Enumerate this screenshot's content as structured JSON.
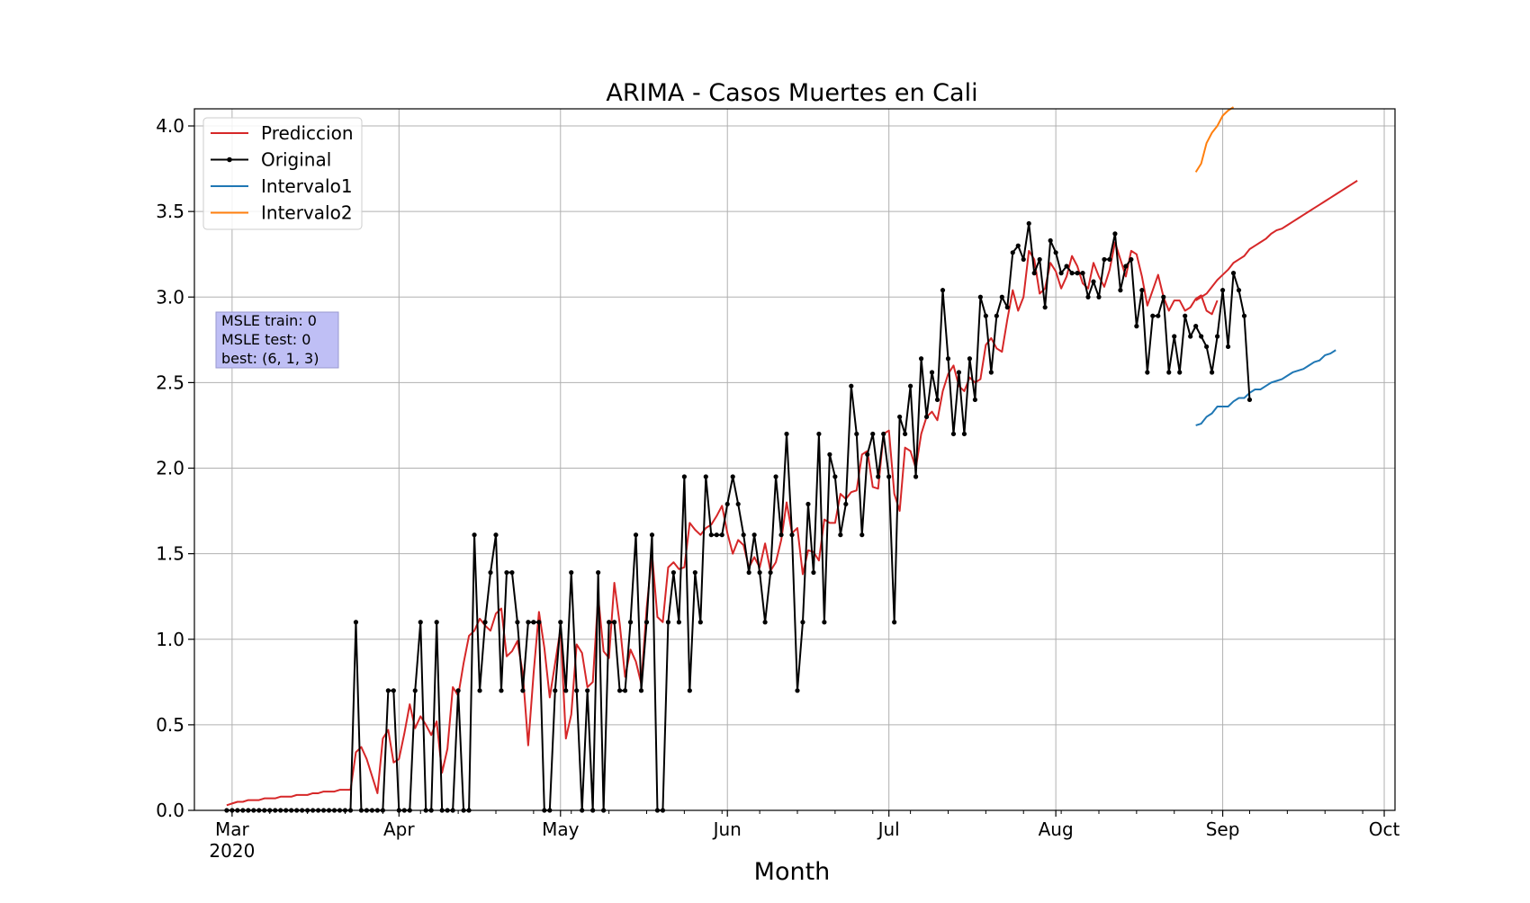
{
  "chart_data": {
    "type": "line",
    "title": "ARIMA - Casos Muertes en Cali",
    "xlabel": "Month",
    "ylabel": "",
    "x_scale": "date",
    "xlim": [
      "2020-02-23",
      "2020-10-03"
    ],
    "ylim": [
      0.0,
      4.1
    ],
    "grid": true,
    "x_ticks": [
      {
        "date": "2020-03-01",
        "label": "Mar",
        "sublabel": "2020"
      },
      {
        "date": "2020-04-01",
        "label": "Apr"
      },
      {
        "date": "2020-05-01",
        "label": "May"
      },
      {
        "date": "2020-06-01",
        "label": "Jun"
      },
      {
        "date": "2020-07-01",
        "label": "Jul"
      },
      {
        "date": "2020-08-01",
        "label": "Aug"
      },
      {
        "date": "2020-09-01",
        "label": "Sep"
      },
      {
        "date": "2020-10-01",
        "label": "Oct"
      }
    ],
    "y_ticks": [
      {
        "value": 0.0,
        "label": "0.0"
      },
      {
        "value": 0.5,
        "label": "0.5"
      },
      {
        "value": 1.0,
        "label": "1.0"
      },
      {
        "value": 1.5,
        "label": "1.5"
      },
      {
        "value": 2.0,
        "label": "2.0"
      },
      {
        "value": 2.5,
        "label": "2.5"
      },
      {
        "value": 3.0,
        "label": "3.0"
      },
      {
        "value": 3.5,
        "label": "3.5"
      },
      {
        "value": 4.0,
        "label": "4.0"
      }
    ],
    "legend": {
      "placement": "top-left",
      "entries": [
        {
          "name": "Prediccion",
          "color": "#d62728",
          "marker": false
        },
        {
          "name": "Original",
          "color": "#000000",
          "marker": true
        },
        {
          "name": "Intervalo1",
          "color": "#1f77b4",
          "marker": false
        },
        {
          "name": "Intervalo2",
          "color": "#ff7f0e",
          "marker": false
        }
      ]
    },
    "annotation": {
      "lines": [
        "MSLE train: 0",
        "MSLE test: 0",
        "best: (6, 1, 3)"
      ],
      "background": "#bfbff5",
      "placement": "left, near y=2.8"
    },
    "series": [
      {
        "name": "Original",
        "color": "#000000",
        "marker": "dot",
        "start_date": "2020-02-29",
        "values": [
          0,
          0,
          0,
          0,
          0,
          0,
          0,
          0,
          0,
          0,
          0,
          0,
          0,
          0,
          0,
          0,
          0,
          0,
          0,
          0,
          0,
          0,
          0,
          0,
          1.1,
          0,
          0,
          0,
          0,
          0,
          0.7,
          0.7,
          0,
          0,
          0,
          0.7,
          1.1,
          0,
          0,
          1.1,
          0,
          0,
          0,
          0.7,
          0,
          0,
          1.61,
          0.7,
          1.1,
          1.39,
          1.61,
          0.7,
          1.39,
          1.39,
          1.1,
          0.7,
          1.1,
          1.1,
          1.1,
          0,
          0,
          0.7,
          1.1,
          0.7,
          1.39,
          0.7,
          0,
          0.7,
          0,
          1.39,
          0,
          1.1,
          1.1,
          0.7,
          0.7,
          1.1,
          1.61,
          0.7,
          1.1,
          1.61,
          0,
          0,
          1.1,
          1.39,
          1.1,
          1.95,
          0.7,
          1.39,
          1.1,
          1.95,
          1.61,
          1.61,
          1.61,
          1.79,
          1.95,
          1.79,
          1.61,
          1.39,
          1.61,
          1.39,
          1.1,
          1.39,
          1.95,
          1.61,
          2.2,
          1.61,
          0.7,
          1.1,
          1.79,
          1.39,
          2.2,
          1.1,
          2.08,
          1.95,
          1.61,
          1.79,
          2.48,
          2.2,
          1.61,
          2.08,
          2.2,
          1.95,
          2.2,
          1.95,
          1.1,
          2.3,
          2.2,
          2.48,
          1.95,
          2.64,
          2.3,
          2.56,
          2.4,
          3.04,
          2.64,
          2.2,
          2.56,
          2.2,
          2.64,
          2.4,
          3.0,
          2.89,
          2.56,
          2.89,
          3.0,
          2.94,
          3.26,
          3.3,
          3.22,
          3.43,
          3.14,
          3.22,
          2.94,
          3.33,
          3.26,
          3.14,
          3.18,
          3.14,
          3.14,
          3.14,
          3.0,
          3.09,
          3.0,
          3.22,
          3.22,
          3.37,
          3.04,
          3.18,
          3.22,
          2.83,
          3.04,
          2.56,
          2.89,
          2.89,
          3.0,
          2.56,
          2.77,
          2.56,
          2.89,
          2.77,
          2.83,
          2.77,
          2.71,
          2.56,
          2.77,
          3.04,
          2.71,
          3.14,
          3.04,
          2.89,
          2.4
        ]
      },
      {
        "name": "Prediccion",
        "color": "#d62728",
        "start_date": "2020-02-29",
        "values": [
          0.03,
          0.04,
          0.05,
          0.05,
          0.06,
          0.06,
          0.06,
          0.07,
          0.07,
          0.07,
          0.08,
          0.08,
          0.08,
          0.09,
          0.09,
          0.09,
          0.1,
          0.1,
          0.11,
          0.11,
          0.11,
          0.12,
          0.12,
          0.12,
          0.34,
          0.37,
          0.3,
          0.2,
          0.1,
          0.42,
          0.47,
          0.28,
          0.3,
          0.45,
          0.62,
          0.48,
          0.55,
          0.5,
          0.44,
          0.52,
          0.22,
          0.36,
          0.72,
          0.67,
          0.86,
          1.02,
          1.05,
          1.12,
          1.08,
          1.05,
          1.15,
          1.18,
          0.9,
          0.93,
          0.99,
          0.8,
          0.38,
          0.8,
          1.16,
          0.95,
          0.66,
          0.86,
          1.06,
          0.42,
          0.56,
          0.97,
          0.92,
          0.72,
          0.75,
          1.25,
          0.93,
          0.89,
          1.33,
          1.09,
          0.78,
          0.94,
          0.87,
          0.74,
          1.18,
          1.5,
          1.13,
          1.1,
          1.42,
          1.45,
          1.41,
          1.42,
          1.68,
          1.64,
          1.61,
          1.65,
          1.67,
          1.72,
          1.78,
          1.62,
          1.5,
          1.58,
          1.55,
          1.42,
          1.48,
          1.42,
          1.56,
          1.4,
          1.45,
          1.58,
          1.8,
          1.62,
          1.65,
          1.38,
          1.52,
          1.51,
          1.46,
          1.7,
          1.68,
          1.68,
          1.85,
          1.82,
          1.86,
          1.87,
          2.08,
          2.1,
          1.89,
          1.88,
          2.2,
          2.22,
          1.85,
          1.75,
          2.12,
          2.1,
          2.0,
          2.2,
          2.3,
          2.33,
          2.28,
          2.45,
          2.55,
          2.6,
          2.48,
          2.45,
          2.53,
          2.5,
          2.52,
          2.72,
          2.76,
          2.7,
          2.68,
          2.87,
          3.04,
          2.92,
          3.0,
          3.27,
          3.22,
          3.02,
          3.05,
          3.2,
          3.15,
          3.05,
          3.12,
          3.24,
          3.18,
          3.08,
          3.05,
          3.2,
          3.12,
          3.06,
          3.16,
          3.32,
          3.22,
          3.12,
          3.27,
          3.25,
          3.12,
          2.95,
          3.04,
          3.13,
          3.0,
          2.92,
          2.98,
          2.98,
          2.92,
          2.94,
          2.99,
          3.01,
          2.92,
          2.9,
          2.98
        ]
      },
      {
        "name": "Prediccion (forecast)",
        "color": "#d62728",
        "start_date": "2020-08-27",
        "values": [
          2.98,
          3.0,
          3.02,
          3.06,
          3.1,
          3.13,
          3.16,
          3.2,
          3.22,
          3.24,
          3.28,
          3.3,
          3.32,
          3.34,
          3.37,
          3.39,
          3.4,
          3.42,
          3.44,
          3.46,
          3.48,
          3.5,
          3.52,
          3.54,
          3.56,
          3.58,
          3.6,
          3.62,
          3.64,
          3.66,
          3.68
        ]
      },
      {
        "name": "Intervalo1",
        "color": "#1f77b4",
        "start_date": "2020-08-27",
        "values": [
          2.25,
          2.26,
          2.3,
          2.32,
          2.36,
          2.36,
          2.36,
          2.39,
          2.41,
          2.41,
          2.44,
          2.46,
          2.46,
          2.48,
          2.5,
          2.51,
          2.52,
          2.54,
          2.56,
          2.57,
          2.58,
          2.6,
          2.62,
          2.63,
          2.66,
          2.67,
          2.69
        ]
      },
      {
        "name": "Intervalo2",
        "color": "#ff7f0e",
        "start_date": "2020-08-27",
        "values": [
          3.73,
          3.78,
          3.9,
          3.96,
          4.0,
          4.06,
          4.09,
          4.11
        ]
      }
    ]
  }
}
